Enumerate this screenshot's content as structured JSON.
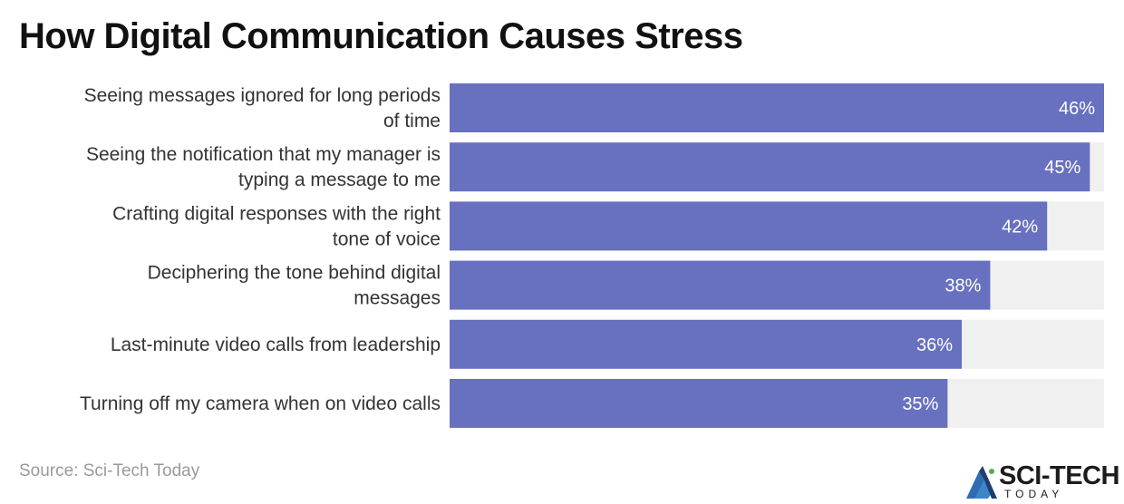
{
  "title": "How Digital Communication Causes Stress",
  "source": "Source: Sci-Tech Today",
  "logo": {
    "text": "SCI-TECH",
    "subtext": "TODAY"
  },
  "colors": {
    "bar": "#6771c0",
    "track": "#f0f0f0",
    "background": "#ffffff"
  },
  "chart_data": {
    "type": "bar",
    "orientation": "horizontal",
    "categories": [
      [
        "Seeing messages ignored for long periods",
        "of time"
      ],
      [
        "Seeing the notification that my manager is",
        "typing a message to me"
      ],
      [
        "Crafting digital responses with the right",
        "tone of voice"
      ],
      [
        "Deciphering the tone behind digital",
        "messages"
      ],
      [
        "Last-minute video calls from leadership"
      ],
      [
        "Turning off my camera when on video calls"
      ]
    ],
    "values": [
      46,
      45,
      42,
      38,
      36,
      35
    ],
    "value_labels": [
      "46%",
      "45%",
      "42%",
      "38%",
      "36%",
      "35%"
    ],
    "unit": "%",
    "xlim": [
      0,
      46
    ],
    "grid": false,
    "legend": false
  }
}
